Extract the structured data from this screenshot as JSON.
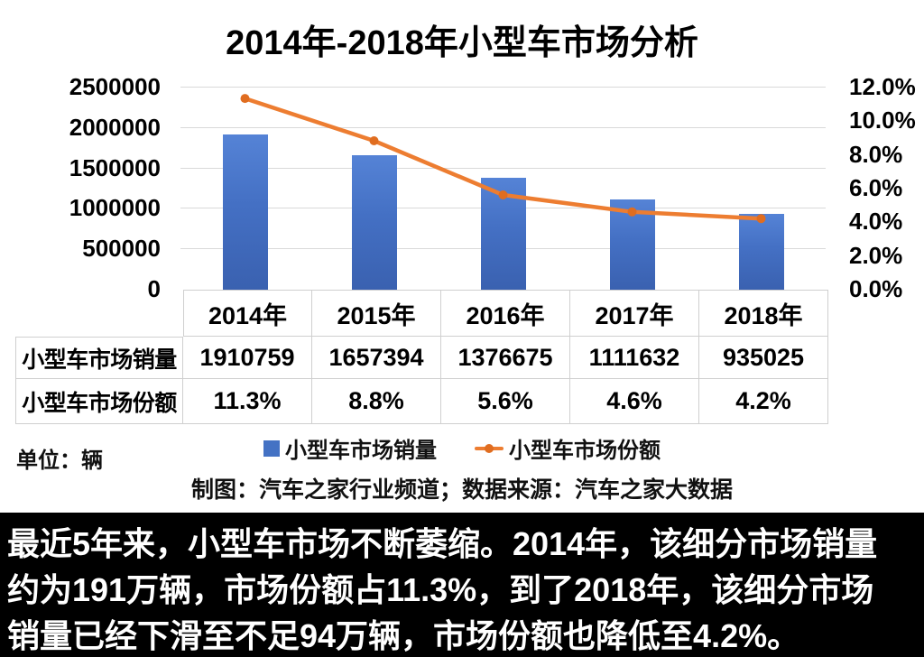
{
  "title": "2014年-2018年小型车市场分析",
  "unit_label": "单位：辆",
  "credit": "制图：汽车之家行业频道；数据来源：汽车之家大数据",
  "legend": {
    "sales_label": "小型车市场销量",
    "share_label": "小型车市场份额"
  },
  "colors": {
    "bar_blue": "#4472C4",
    "line_orange": "#ED7D31",
    "gridline": "#D9D9D9",
    "table_border": "#CFCFCF",
    "caption_bg": "#000000",
    "caption_text": "#FFFFFF"
  },
  "chart_data": {
    "type": "bar",
    "subtype": "combo bar+line, dual axis",
    "title": "2014年-2018年小型车市场分析",
    "categories": [
      "2014年",
      "2015年",
      "2016年",
      "2017年",
      "2018年"
    ],
    "series": [
      {
        "name": "小型车市场销量",
        "type": "bar",
        "axis": "left",
        "values": [
          1910759,
          1657394,
          1376675,
          1111632,
          935025
        ]
      },
      {
        "name": "小型车市场份额",
        "type": "line",
        "axis": "right",
        "values_percent": [
          11.3,
          8.8,
          5.6,
          4.6,
          4.2
        ]
      }
    ],
    "left_axis": {
      "ticks": [
        "2500000",
        "2000000",
        "1500000",
        "1000000",
        "500000",
        "0"
      ],
      "min": 0,
      "max": 2500000
    },
    "right_axis": {
      "ticks": [
        "12.0%",
        "10.0%",
        "8.0%",
        "6.0%",
        "4.0%",
        "2.0%",
        "0.0%"
      ],
      "min": 0,
      "max": 12
    },
    "grid": true,
    "legend_position": "bottom"
  },
  "table": {
    "rows": [
      {
        "label": "小型车市场销量",
        "cells": [
          "1910759",
          "1657394",
          "1376675",
          "1111632",
          "935025"
        ]
      },
      {
        "label": "小型车市场份额",
        "cells": [
          "11.3%",
          "8.8%",
          "5.6%",
          "4.6%",
          "4.2%"
        ]
      }
    ]
  },
  "caption": {
    "lines": [
      "最近5年来，小型车市场不断萎缩。2014年，该细分市场销量",
      "约为191万辆，市场份额占11.3%，到了2018年，该细分市场",
      "销量已经下滑至不足94万辆，市场份额也降低至4.2%。"
    ]
  }
}
